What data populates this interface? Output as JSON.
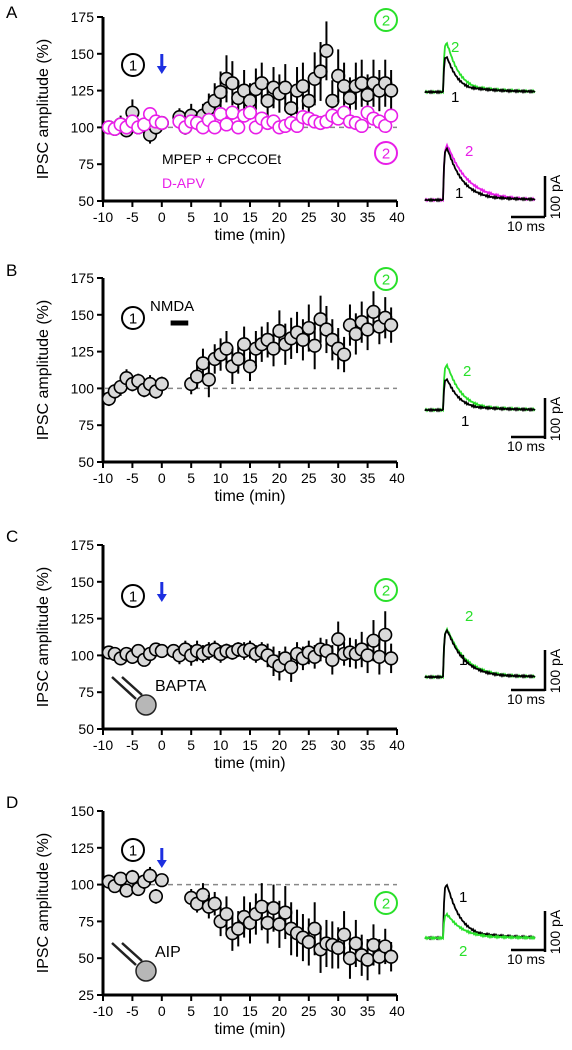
{
  "labels": {
    "time_unit": "time (min)",
    "ylabel": "IPSC amplitude (%)"
  },
  "colors": {
    "black": "#000000",
    "magenta": "#e81ee8",
    "green": "#29e02a",
    "arrow": "#1c2fe0",
    "marker_fill": "#d9d9d9",
    "baseline": "#888888",
    "soma": "#b7b7b7"
  },
  "scale_bar": {
    "amplitude": "100 pA",
    "time": "10 ms"
  },
  "trace_labels": {
    "pre": "1",
    "post": "2"
  },
  "circle_labels": {
    "pre": "1",
    "post": "2"
  },
  "chart_data": [
    {
      "panel": "A",
      "type": "scatter",
      "xlabel": "time (min)",
      "ylabel": "IPSC amplitude (%)",
      "xlim": [
        -10,
        40
      ],
      "ylim": [
        50,
        175
      ],
      "xticks": [
        -10,
        -5,
        0,
        5,
        10,
        15,
        20,
        25,
        30,
        35,
        40
      ],
      "yticks": [
        50,
        75,
        100,
        125,
        150,
        175
      ],
      "baseline": 100,
      "arrow_at": 0,
      "legend": [
        "MPEP + CPCCOEt",
        "D-APV"
      ],
      "series": [
        {
          "name": "MPEP + CPCCOEt",
          "color": "black",
          "x": [
            -9,
            -8,
            -7,
            -6,
            -5,
            -4,
            -3,
            -2,
            -1,
            0,
            3,
            4,
            5,
            6,
            7,
            8,
            9,
            10,
            11,
            12,
            13,
            14,
            15,
            16,
            17,
            18,
            19,
            20,
            21,
            22,
            23,
            24,
            25,
            26,
            27,
            28,
            29,
            30,
            31,
            32,
            33,
            34,
            35,
            36,
            37,
            38,
            39
          ],
          "y": [
            100,
            99,
            102,
            98,
            110,
            100,
            101,
            95,
            100,
            103,
            107,
            100,
            108,
            104,
            108,
            113,
            118,
            124,
            133,
            130,
            120,
            125,
            118,
            126,
            130,
            118,
            127,
            123,
            127,
            113,
            125,
            128,
            118,
            133,
            138,
            152,
            118,
            135,
            128,
            120,
            128,
            130,
            122,
            130,
            125,
            130,
            125
          ],
          "err": [
            4,
            4,
            6,
            4,
            9,
            4,
            4,
            6,
            5,
            4,
            6,
            5,
            8,
            6,
            8,
            10,
            12,
            14,
            16,
            15,
            12,
            14,
            12,
            14,
            14,
            12,
            14,
            13,
            16,
            12,
            16,
            16,
            13,
            18,
            20,
            20,
            14,
            18,
            16,
            14,
            16,
            16,
            14,
            16,
            14,
            16,
            14
          ]
        },
        {
          "name": "D-APV",
          "color": "magenta",
          "x": [
            -9,
            -8,
            -7,
            -6,
            -5,
            -4,
            -3,
            -2,
            -1,
            0,
            3,
            4,
            5,
            6,
            7,
            8,
            9,
            10,
            11,
            12,
            13,
            14,
            15,
            16,
            17,
            18,
            19,
            20,
            21,
            22,
            23,
            24,
            25,
            26,
            27,
            28,
            29,
            30,
            31,
            32,
            33,
            34,
            35,
            36,
            37,
            38,
            39
          ],
          "y": [
            100,
            99,
            102,
            100,
            104,
            100,
            102,
            109,
            104,
            103,
            104,
            100,
            104,
            103,
            100,
            105,
            100,
            109,
            102,
            110,
            100,
            108,
            110,
            100,
            106,
            103,
            104,
            100,
            101,
            103,
            101,
            107,
            106,
            104,
            103,
            104,
            108,
            106,
            110,
            104,
            103,
            101,
            110,
            106,
            104,
            101,
            108
          ],
          "err": [
            3,
            3,
            3,
            3,
            3,
            3,
            3,
            4,
            3,
            3,
            4,
            3,
            4,
            4,
            3,
            5,
            3,
            4,
            3,
            5,
            3,
            4,
            5,
            3,
            4,
            3,
            4,
            3,
            3,
            3,
            3,
            5,
            4,
            4,
            3,
            3,
            5,
            4,
            5,
            3,
            3,
            3,
            5,
            4,
            3,
            3,
            4
          ]
        }
      ]
    },
    {
      "panel": "B",
      "type": "scatter",
      "xlabel": "time (min)",
      "ylabel": "IPSC amplitude (%)",
      "xlim": [
        -10,
        40
      ],
      "ylim": [
        50,
        175
      ],
      "xticks": [
        -10,
        -5,
        0,
        5,
        10,
        15,
        20,
        25,
        30,
        35,
        40
      ],
      "yticks": [
        50,
        75,
        100,
        125,
        150,
        175
      ],
      "baseline": 100,
      "annotation": {
        "label": "NMDA",
        "from": 1.5,
        "to": 4.5
      },
      "series": [
        {
          "name": "",
          "color": "black",
          "x": [
            -9,
            -8,
            -7,
            -6,
            -5,
            -4,
            -3,
            -2,
            -1,
            0,
            5,
            6,
            7,
            8,
            9,
            10,
            11,
            12,
            13,
            14,
            15,
            16,
            17,
            18,
            19,
            20,
            21,
            22,
            23,
            24,
            25,
            26,
            27,
            28,
            29,
            30,
            31,
            32,
            33,
            34,
            35,
            36,
            37,
            38,
            39
          ],
          "y": [
            93,
            98,
            101,
            107,
            103,
            105,
            99,
            103,
            98,
            103,
            103,
            108,
            117,
            106,
            120,
            123,
            127,
            115,
            120,
            130,
            115,
            127,
            130,
            133,
            127,
            139,
            130,
            134,
            138,
            133,
            141,
            129,
            147,
            140,
            133,
            127,
            123,
            143,
            137,
            145,
            140,
            152,
            142,
            148,
            143
          ],
          "err": [
            5,
            5,
            6,
            6,
            5,
            5,
            5,
            6,
            5,
            5,
            7,
            8,
            10,
            12,
            10,
            11,
            12,
            12,
            10,
            12,
            10,
            12,
            12,
            12,
            12,
            14,
            14,
            14,
            14,
            14,
            16,
            16,
            16,
            16,
            14,
            14,
            12,
            14,
            14,
            14,
            14,
            14,
            12,
            14,
            12
          ]
        }
      ]
    },
    {
      "panel": "C",
      "type": "scatter",
      "xlabel": "time (min)",
      "ylabel": "IPSC amplitude (%)",
      "xlim": [
        -10,
        40
      ],
      "ylim": [
        50,
        175
      ],
      "xticks": [
        -10,
        -5,
        0,
        5,
        10,
        15,
        20,
        25,
        30,
        35,
        40
      ],
      "yticks": [
        50,
        75,
        100,
        125,
        150,
        175
      ],
      "baseline": 100,
      "arrow_at": 0,
      "annotation": {
        "label": "BAPTA"
      },
      "series": [
        {
          "name": "",
          "color": "black",
          "x": [
            -9,
            -8,
            -7,
            -6,
            -5,
            -4,
            -3,
            -2,
            -1,
            0,
            2,
            3,
            4,
            5,
            6,
            7,
            8,
            9,
            10,
            11,
            12,
            13,
            14,
            15,
            16,
            17,
            18,
            19,
            20,
            21,
            22,
            23,
            24,
            25,
            26,
            27,
            28,
            29,
            30,
            31,
            32,
            33,
            34,
            35,
            36,
            37,
            38,
            39
          ],
          "y": [
            102,
            101,
            98,
            101,
            99,
            103,
            97,
            101,
            104,
            103,
            103,
            100,
            104,
            100,
            103,
            101,
            103,
            104,
            101,
            103,
            102,
            104,
            103,
            104,
            101,
            103,
            100,
            96,
            93,
            98,
            92,
            101,
            98,
            102,
            99,
            104,
            103,
            97,
            111,
            101,
            102,
            101,
            104,
            100,
            110,
            99,
            114,
            98
          ],
          "err": [
            3,
            3,
            3,
            3,
            4,
            3,
            4,
            4,
            4,
            3,
            4,
            6,
            6,
            7,
            7,
            6,
            6,
            6,
            6,
            5,
            5,
            5,
            6,
            6,
            6,
            6,
            8,
            10,
            10,
            8,
            10,
            8,
            8,
            8,
            8,
            8,
            8,
            10,
            12,
            8,
            10,
            10,
            12,
            12,
            14,
            12,
            16,
            10
          ]
        }
      ]
    },
    {
      "panel": "D",
      "type": "scatter",
      "xlabel": "time (min)",
      "ylabel": "IPSC amplitude (%)",
      "xlim": [
        -10,
        40
      ],
      "ylim": [
        25,
        150
      ],
      "xticks": [
        -10,
        -5,
        0,
        5,
        10,
        15,
        20,
        25,
        30,
        35,
        40
      ],
      "yticks": [
        25,
        50,
        75,
        100,
        125,
        150
      ],
      "baseline": 100,
      "arrow_at": 0,
      "annotation": {
        "label": "AIP"
      },
      "series": [
        {
          "name": "",
          "color": "black",
          "x": [
            -9,
            -8,
            -7,
            -6,
            -5,
            -4,
            -3,
            -2,
            -1,
            0,
            5,
            6,
            7,
            8,
            9,
            10,
            11,
            12,
            13,
            14,
            15,
            16,
            17,
            18,
            19,
            20,
            21,
            22,
            23,
            24,
            25,
            26,
            27,
            28,
            29,
            30,
            31,
            32,
            33,
            34,
            35,
            36,
            37,
            38,
            39
          ],
          "y": [
            102,
            99,
            104,
            96,
            105,
            97,
            102,
            106,
            92,
            103,
            91,
            87,
            93,
            85,
            87,
            75,
            80,
            67,
            70,
            78,
            74,
            80,
            85,
            74,
            84,
            73,
            81,
            70,
            67,
            64,
            61,
            70,
            56,
            60,
            59,
            57,
            66,
            50,
            60,
            52,
            49,
            59,
            51,
            58,
            51
          ],
          "err": [
            3,
            3,
            4,
            4,
            5,
            4,
            5,
            6,
            5,
            3,
            6,
            6,
            8,
            8,
            8,
            10,
            12,
            12,
            12,
            14,
            14,
            14,
            16,
            14,
            16,
            16,
            18,
            18,
            16,
            16,
            16,
            18,
            16,
            16,
            16,
            14,
            16,
            14,
            16,
            14,
            14,
            14,
            12,
            12,
            10
          ]
        }
      ]
    }
  ]
}
